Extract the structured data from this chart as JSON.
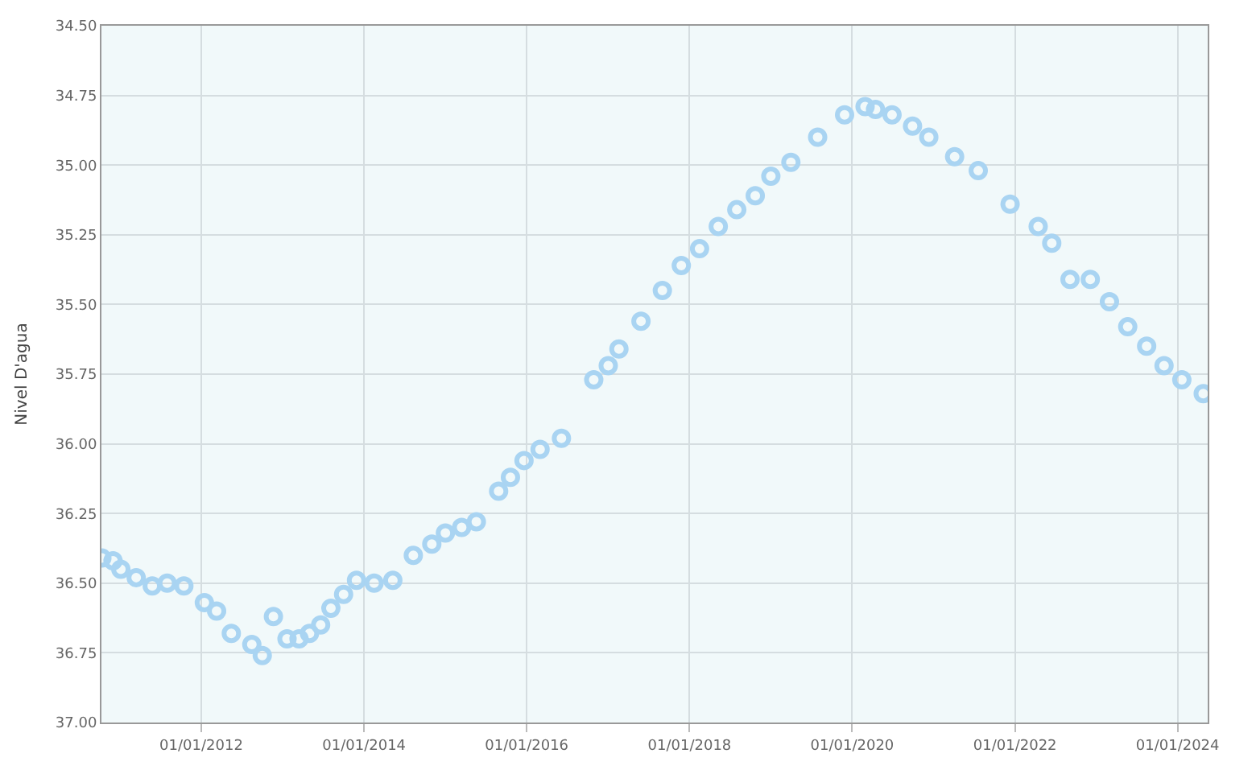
{
  "chart_data": {
    "type": "scatter",
    "ylabel": "Nivel D'agua",
    "x": [
      "2010-10-12",
      "2010-12-01",
      "2011-01-05",
      "2011-03-15",
      "2011-05-26",
      "2011-08-01",
      "2011-10-15",
      "2012-01-15",
      "2012-03-10",
      "2012-05-15",
      "2012-08-15",
      "2012-10-01",
      "2012-11-20",
      "2013-01-20",
      "2013-03-15",
      "2013-05-01",
      "2013-06-20",
      "2013-08-05",
      "2013-10-01",
      "2013-11-28",
      "2014-02-15",
      "2014-05-10",
      "2014-08-10",
      "2014-11-01",
      "2015-01-01",
      "2015-03-15",
      "2015-05-20",
      "2015-08-28",
      "2015-10-20",
      "2015-12-20",
      "2016-03-01",
      "2016-06-05",
      "2016-10-28",
      "2017-01-01",
      "2017-02-18",
      "2017-05-28",
      "2017-09-01",
      "2017-11-25",
      "2018-02-15",
      "2018-05-10",
      "2018-08-01",
      "2018-10-23",
      "2019-01-01",
      "2019-04-01",
      "2019-07-30",
      "2019-11-28",
      "2020-02-28",
      "2020-04-15",
      "2020-06-28",
      "2020-09-28",
      "2020-12-10",
      "2021-04-05",
      "2021-07-20",
      "2021-12-10",
      "2022-04-15",
      "2022-06-15",
      "2022-09-05",
      "2022-12-05",
      "2023-03-01",
      "2023-05-22",
      "2023-08-15",
      "2023-11-01",
      "2024-01-20",
      "2024-04-25"
    ],
    "values": [
      36.41,
      36.42,
      36.45,
      36.48,
      36.51,
      36.5,
      36.51,
      36.57,
      36.6,
      36.68,
      36.72,
      36.76,
      36.62,
      36.7,
      36.7,
      36.68,
      36.65,
      36.59,
      36.54,
      36.49,
      36.5,
      36.49,
      36.4,
      36.36,
      36.32,
      36.3,
      36.28,
      36.17,
      36.12,
      36.06,
      36.02,
      35.98,
      35.77,
      35.72,
      35.66,
      35.56,
      35.45,
      35.36,
      35.3,
      35.22,
      35.16,
      35.11,
      35.04,
      34.99,
      34.9,
      34.82,
      34.79,
      34.8,
      34.82,
      34.86,
      34.9,
      34.97,
      35.02,
      35.14,
      35.22,
      35.28,
      35.41,
      35.41,
      35.49,
      35.58,
      35.65,
      35.72,
      35.77,
      35.82
    ],
    "color": "#a9d4f2",
    "marker": "circle",
    "grid": true,
    "xlim": [
      "2010-10-10",
      "2024-05-15"
    ],
    "xticks": [
      {
        "value": "2012-01-01",
        "label": "01/01/2012"
      },
      {
        "value": "2014-01-01",
        "label": "01/01/2014"
      },
      {
        "value": "2016-01-01",
        "label": "01/01/2016"
      },
      {
        "value": "2018-01-01",
        "label": "01/01/2018"
      },
      {
        "value": "2020-01-01",
        "label": "01/01/2020"
      },
      {
        "value": "2022-01-01",
        "label": "01/01/2022"
      },
      {
        "value": "2024-01-01",
        "label": "01/01/2024"
      }
    ],
    "ylim": [
      37.0,
      34.5
    ],
    "yticks": [
      {
        "value": 34.5,
        "label": "34.50"
      },
      {
        "value": 34.75,
        "label": "34.75"
      },
      {
        "value": 35.0,
        "label": "35.00"
      },
      {
        "value": 35.25,
        "label": "35.25"
      },
      {
        "value": 35.5,
        "label": "35.50"
      },
      {
        "value": 35.75,
        "label": "35.75"
      },
      {
        "value": 36.0,
        "label": "36.00"
      },
      {
        "value": 36.25,
        "label": "36.25"
      },
      {
        "value": 36.5,
        "label": "36.50"
      },
      {
        "value": 36.75,
        "label": "36.75"
      },
      {
        "value": 37.0,
        "label": "37.00"
      }
    ]
  }
}
